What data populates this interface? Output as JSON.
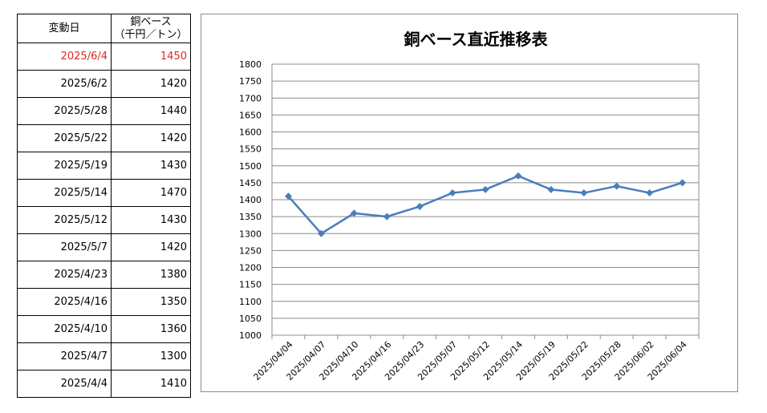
{
  "table": {
    "header": {
      "date": "変動日",
      "price_line1": "銅ベース",
      "price_line2": "（千円／トン）"
    },
    "rows": [
      {
        "date": "2025/6/4",
        "price": "1450",
        "highlight": true
      },
      {
        "date": "2025/6/2",
        "price": "1420"
      },
      {
        "date": "2025/5/28",
        "price": "1440"
      },
      {
        "date": "2025/5/22",
        "price": "1420"
      },
      {
        "date": "2025/5/19",
        "price": "1430"
      },
      {
        "date": "2025/5/14",
        "price": "1470"
      },
      {
        "date": "2025/5/12",
        "price": "1430"
      },
      {
        "date": "2025/5/7",
        "price": "1420"
      },
      {
        "date": "2025/4/23",
        "price": "1380"
      },
      {
        "date": "2025/4/16",
        "price": "1350"
      },
      {
        "date": "2025/4/10",
        "price": "1360"
      },
      {
        "date": "2025/4/7",
        "price": "1300"
      },
      {
        "date": "2025/4/4",
        "price": "1410"
      }
    ],
    "highlight_color": "#e0261f"
  },
  "chart_data": {
    "type": "line",
    "title": "銅ベース直近推移表",
    "categories": [
      "2025/04/04",
      "2025/04/07",
      "2025/04/10",
      "2025/04/16",
      "2025/04/23",
      "2025/05/07",
      "2025/05/12",
      "2025/05/14",
      "2025/05/19",
      "2025/05/22",
      "2025/05/28",
      "2025/06/02",
      "2025/06/04"
    ],
    "series": [
      {
        "values": [
          1410,
          1300,
          1360,
          1350,
          1380,
          1420,
          1430,
          1470,
          1430,
          1420,
          1440,
          1420,
          1450
        ],
        "color": "#4a7ebb"
      }
    ],
    "ylim": [
      1000,
      1800
    ],
    "yticks": [
      1000,
      1050,
      1100,
      1150,
      1200,
      1250,
      1300,
      1350,
      1400,
      1450,
      1500,
      1550,
      1600,
      1650,
      1700,
      1750,
      1800
    ],
    "grid": true,
    "legend": "none"
  }
}
